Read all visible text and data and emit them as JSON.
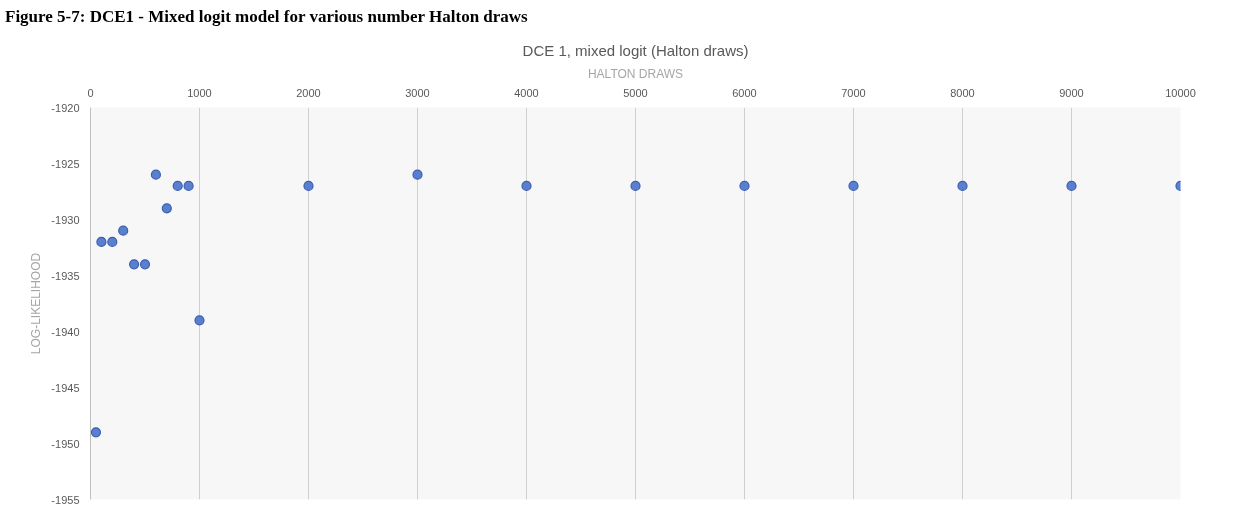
{
  "chart_data": {
    "type": "scatter",
    "title": "DCE 1, mixed logit (Halton draws)",
    "xlabel": "HALTON DRAWS",
    "ylabel": "LOG-LIKELIHOOD",
    "annotations": [
      "Figure 5-7: DCE1 - Mixed logit model for various number Halton draws"
    ],
    "x": [
      50,
      100,
      200,
      300,
      400,
      500,
      600,
      700,
      800,
      900,
      1000,
      2000,
      3000,
      4000,
      5000,
      6000,
      7000,
      8000,
      9000,
      10000
    ],
    "series": [
      {
        "color": "#5b7fcf",
        "values": [
          -1949,
          -1932,
          -1932,
          -1931,
          -1934,
          -1934,
          -1926,
          -1929,
          -1927,
          -1927,
          -1939,
          -1927,
          -1926,
          -1927,
          -1927,
          -1927,
          -1927,
          -1927,
          -1927,
          -1927
        ]
      }
    ],
    "xlim": [
      0,
      10000
    ],
    "xticks": [
      0,
      1000,
      2000,
      3000,
      4000,
      5000,
      6000,
      7000,
      8000,
      9000,
      10000
    ],
    "ylim": [
      -1955,
      -1920
    ],
    "yticks": [
      -1955,
      -1950,
      -1945,
      -1940,
      -1935,
      -1930,
      -1925,
      -1920
    ],
    "grid": "x",
    "marker": "circle"
  }
}
